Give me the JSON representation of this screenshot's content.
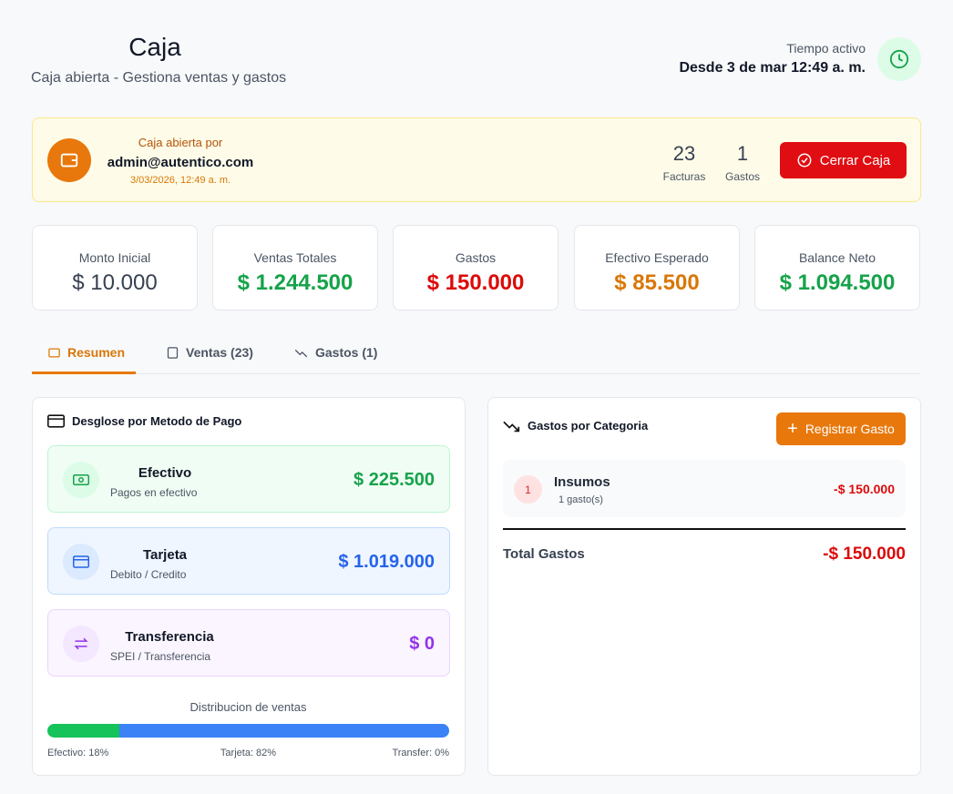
{
  "header": {
    "title": "Caja",
    "subtitle": "Caja abierta - Gestiona ventas y gastos",
    "active_label": "Tiempo activo",
    "active_since": "Desde 3 de mar 12:49 a. m."
  },
  "banner": {
    "opened_by_label": "Caja abierta por",
    "user": "admin@autentico.com",
    "datetime": "3/03/2026, 12:49 a. m.",
    "stats": [
      {
        "value": "23",
        "label": "Facturas"
      },
      {
        "value": "1",
        "label": "Gastos"
      }
    ],
    "button": "Cerrar Caja"
  },
  "cards": [
    {
      "label": "Monto Inicial",
      "value": "$ 10.000"
    },
    {
      "label": "Ventas Totales",
      "value": "$ 1.244.500"
    },
    {
      "label": "Gastos",
      "value": "$ 150.000"
    },
    {
      "label": "Efectivo Esperado",
      "value": "$ 85.500"
    },
    {
      "label": "Balance Neto",
      "value": "$ 1.094.500"
    }
  ],
  "tabs": [
    "Resumen",
    "Ventas (23)",
    "Gastos (1)"
  ],
  "payment": {
    "title": "Desglose por Metodo de Pago",
    "methods": [
      {
        "name": "Efectivo",
        "description": "Pagos en efectivo",
        "amount": "$ 225.500"
      },
      {
        "name": "Tarjeta",
        "description": "Debito / Credito",
        "amount": "$ 1.019.000"
      },
      {
        "name": "Transferencia",
        "description": "SPEI / Transferencia",
        "amount": "$ 0"
      }
    ],
    "distribution": {
      "title": "Distribucion de ventas",
      "segments": [
        {
          "label": "Efectivo: 18%",
          "value": 18,
          "color": "#16c25a"
        },
        {
          "label": "Tarjeta: 82%",
          "value": 82,
          "color": "#3b82f6"
        },
        {
          "label": "Transfer: 0%",
          "value": 0,
          "color": "#a855f7"
        }
      ]
    }
  },
  "expenses": {
    "title": "Gastos por Categoria",
    "button": "Registrar Gasto",
    "items": [
      {
        "index": "1",
        "name": "Insumos",
        "count": "1 gasto(s)",
        "amount": "-$ 150.000"
      }
    ],
    "total_label": "Total Gastos",
    "total": "-$ 150.000"
  }
}
